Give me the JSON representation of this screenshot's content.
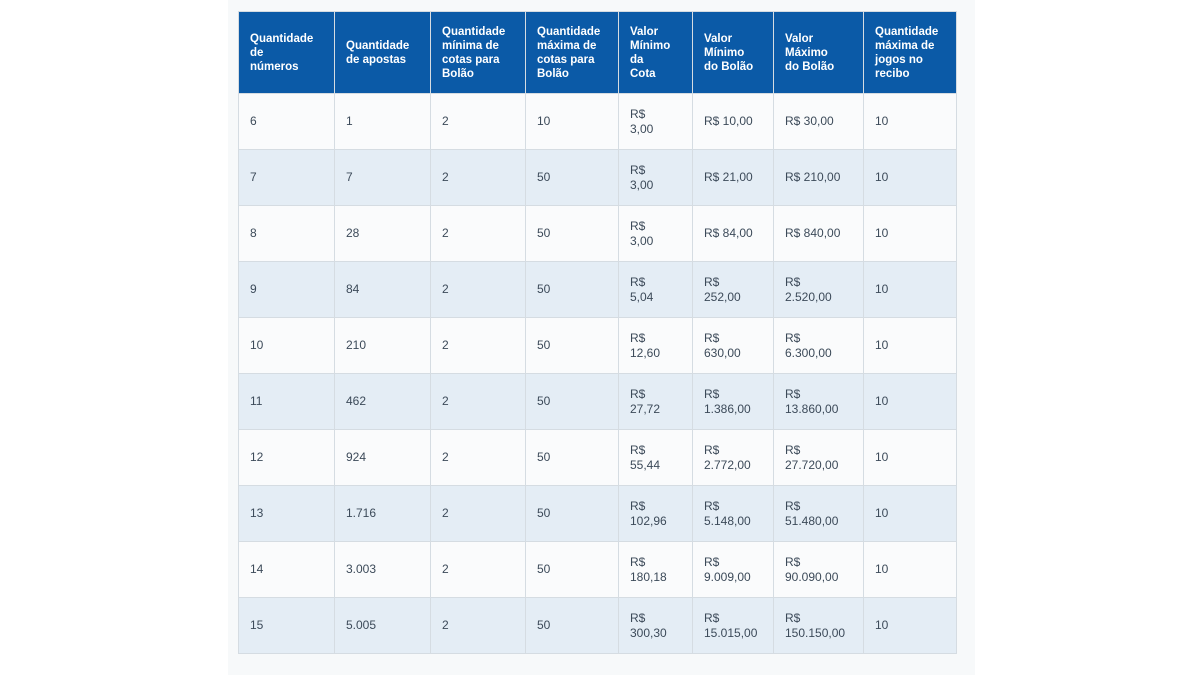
{
  "theme": {
    "header_bg": "#0b5aa7",
    "header_text": "#ffffff",
    "row_odd_bg": "#fafbfc",
    "row_even_bg": "#e4edf5",
    "cell_text": "#3c4a59",
    "border_color": "#d5dce2",
    "card_bg": "#f7f9fa",
    "page_bg": "#ffffff"
  },
  "table": {
    "columns": [
      {
        "label": "Quantidade\nde\nnúmeros"
      },
      {
        "label": "Quantidade\nde apostas"
      },
      {
        "label": "Quantidade\nmínima de\ncotas para\nBolão"
      },
      {
        "label": "Quantidade\nmáxima de\ncotas para\nBolão"
      },
      {
        "label": "Valor\nMínimo\nda\nCota"
      },
      {
        "label": "Valor\nMínimo\ndo Bolão"
      },
      {
        "label": "Valor\nMáximo\ndo Bolão"
      },
      {
        "label": "Quantidade\nmáxima de\njogos no\nrecibo"
      }
    ],
    "rows": [
      [
        "6",
        "1",
        "2",
        "10",
        "R$\n3,00",
        "R$ 10,00",
        "R$ 30,00",
        "10"
      ],
      [
        "7",
        "7",
        "2",
        "50",
        "R$\n3,00",
        "R$ 21,00",
        "R$ 210,00",
        "10"
      ],
      [
        "8",
        "28",
        "2",
        "50",
        "R$\n3,00",
        "R$ 84,00",
        "R$ 840,00",
        "10"
      ],
      [
        "9",
        "84",
        "2",
        "50",
        "R$\n5,04",
        "R$\n252,00",
        "R$\n2.520,00",
        "10"
      ],
      [
        "10",
        "210",
        "2",
        "50",
        "R$\n12,60",
        "R$\n630,00",
        "R$\n6.300,00",
        "10"
      ],
      [
        "11",
        "462",
        "2",
        "50",
        "R$\n27,72",
        "R$\n1.386,00",
        "R$\n13.860,00",
        "10"
      ],
      [
        "12",
        "924",
        "2",
        "50",
        "R$\n55,44",
        "R$\n2.772,00",
        "R$\n27.720,00",
        "10"
      ],
      [
        "13",
        "1.716",
        "2",
        "50",
        "R$\n102,96",
        "R$\n5.148,00",
        "R$\n51.480,00",
        "10"
      ],
      [
        "14",
        "3.003",
        "2",
        "50",
        "R$\n180,18",
        "R$\n9.009,00",
        "R$\n90.090,00",
        "10"
      ],
      [
        "15",
        "5.005",
        "2",
        "50",
        "R$\n300,30",
        "R$\n15.015,00",
        "R$\n150.150,00",
        "10"
      ]
    ]
  }
}
